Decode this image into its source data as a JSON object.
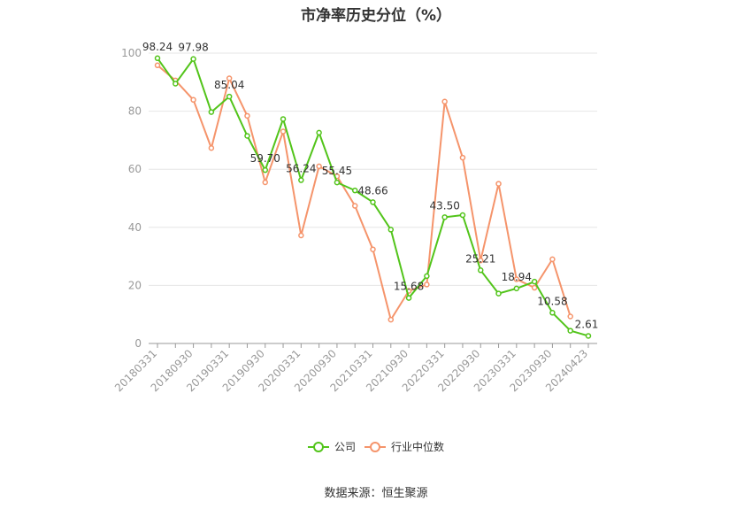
{
  "chart_data": {
    "type": "line",
    "title": "市净率历史分位（%）",
    "x_tick_labels": [
      "20180331",
      "20180930",
      "20190331",
      "20190930",
      "20200331",
      "20200930",
      "20210331",
      "20210930",
      "20220331",
      "20220930",
      "20230331",
      "20230930",
      "20240423"
    ],
    "ylim": [
      0,
      100
    ],
    "y_ticks": [
      0,
      20,
      40,
      60,
      80,
      100
    ],
    "grid": true,
    "legend_position": "bottom",
    "series": [
      {
        "name": "公司",
        "color": "#52c41a",
        "values": [
          98.24,
          89.5,
          97.98,
          79.7,
          85.04,
          71.5,
          59.7,
          77.3,
          56.24,
          72.6,
          55.45,
          52.7,
          48.66,
          39.2,
          15.68,
          23.2,
          43.5,
          44.2,
          25.21,
          17.2,
          18.94,
          21.3,
          10.58,
          4.4,
          2.61
        ],
        "data_labels": {
          "0": "98.24",
          "2": "97.98",
          "4": "85.04",
          "6": "59.70",
          "8": "56.24",
          "10": "55.45",
          "12": "48.66",
          "14": "15.68",
          "16": "43.50",
          "18": "25.21",
          "20": "18.94",
          "22": "10.58",
          "24": "2.61"
        }
      },
      {
        "name": "行业中位数",
        "color": "#f5946b",
        "values": [
          95.8,
          90.6,
          83.9,
          67.3,
          91.3,
          78.4,
          55.5,
          73.0,
          37.2,
          61.0,
          57.6,
          47.4,
          32.4,
          8.2,
          18.1,
          20.3,
          83.3,
          64.0,
          28.6,
          55.0,
          22.1,
          19.2,
          29.0,
          9.3,
          null
        ]
      }
    ]
  },
  "source_text": "数据来源：恒生聚源"
}
